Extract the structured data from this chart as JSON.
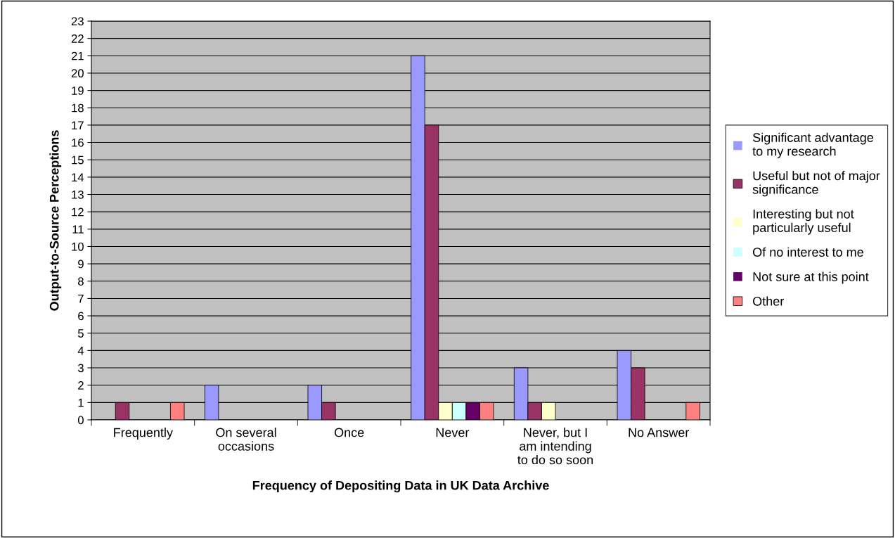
{
  "chart_data": {
    "type": "bar",
    "xlabel": "Frequency of Depositing Data in UK Data Archive",
    "ylabel": "Output-to-Source Perceptions",
    "categories": [
      "Frequently",
      "On several\noccasions",
      "Once",
      "Never",
      "Never, but I\nam intending\nto do so soon",
      "No Answer"
    ],
    "series": [
      {
        "name": "Significant advantage\nto my research",
        "color": "#9999ff",
        "values": [
          0,
          2,
          2,
          21,
          3,
          4
        ]
      },
      {
        "name": "Useful but not of major\nsignificance",
        "color": "#993366",
        "values": [
          1,
          0,
          1,
          17,
          1,
          3
        ]
      },
      {
        "name": "Interesting but not\nparticularly useful",
        "color": "#ffffcc",
        "values": [
          0,
          0,
          0,
          1,
          1,
          0
        ]
      },
      {
        "name": "Of no interest to me",
        "color": "#ccffff",
        "values": [
          0,
          0,
          0,
          1,
          0,
          0
        ]
      },
      {
        "name": "Not sure at this point",
        "color": "#660066",
        "values": [
          0,
          0,
          0,
          1,
          0,
          0
        ]
      },
      {
        "name": "Other",
        "color": "#ff8080",
        "values": [
          1,
          0,
          0,
          1,
          0,
          1
        ]
      }
    ],
    "ylim": [
      0,
      23
    ],
    "yticks": [
      0,
      1,
      2,
      3,
      4,
      5,
      6,
      7,
      8,
      9,
      10,
      11,
      12,
      13,
      14,
      15,
      16,
      17,
      18,
      19,
      20,
      21,
      22,
      23
    ],
    "grid": "y",
    "legend": "right"
  }
}
